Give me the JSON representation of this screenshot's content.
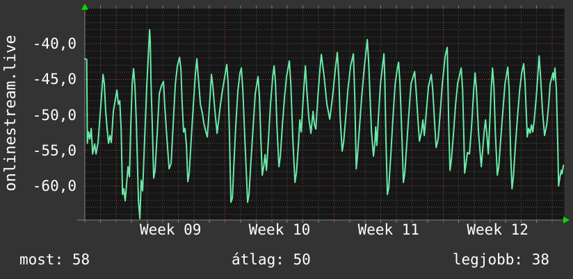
{
  "title": "onlinestream.live",
  "legend": {
    "items": [
      {
        "name": "now",
        "label": "most:",
        "value": "58"
      },
      {
        "name": "average",
        "label": "átlag:",
        "value": "50"
      },
      {
        "name": "best",
        "label": "legjobb:",
        "value": "38"
      }
    ]
  },
  "colors": {
    "background": "#333333",
    "plot_background": "#161616",
    "grid_minor": "#525252",
    "grid_major": "#a84747",
    "axis": "#848484",
    "arrow": "#00dd00",
    "line": "#6beaa8",
    "text": "#ffffff"
  },
  "chart_data": {
    "type": "line",
    "title": "onlinestream.live",
    "grid": "on",
    "stats": {
      "most": 58,
      "atlag": 50,
      "legjobb": 38
    },
    "y_axis": {
      "range": [
        -64.8,
        -35.0
      ],
      "minor_step": 1,
      "ticks": [
        {
          "value": -40,
          "label": "-40,0"
        },
        {
          "value": -45,
          "label": "-45,0"
        },
        {
          "value": -50,
          "label": "-50,0"
        },
        {
          "value": -55,
          "label": "-55,0"
        },
        {
          "value": -60,
          "label": "-60,0"
        }
      ]
    },
    "x_axis": {
      "unit": "days from start of Week 09",
      "range_days": [
        -2.0,
        28.8
      ],
      "minor_step_days": 1,
      "week_boundary_days": [
        0,
        7,
        14,
        21,
        28
      ],
      "labels": [
        {
          "day_center": 3.5,
          "label": "Week 09"
        },
        {
          "day_center": 10.5,
          "label": "Week 10"
        },
        {
          "day_center": 17.5,
          "label": "Week 11"
        },
        {
          "day_center": 24.5,
          "label": "Week 12"
        }
      ]
    },
    "series": [
      {
        "name": "signal",
        "color": "#6beaa8",
        "points": [
          [
            -2.0,
            -42.1
          ],
          [
            -1.88,
            -42.2
          ],
          [
            -1.84,
            -54.0
          ],
          [
            -1.77,
            -52.4
          ],
          [
            -1.68,
            -53.4
          ],
          [
            -1.59,
            -51.9
          ],
          [
            -1.5,
            -55.5
          ],
          [
            -1.37,
            -54.1
          ],
          [
            -1.28,
            -55.5
          ],
          [
            -1.15,
            -53.9
          ],
          [
            -0.97,
            -48.5
          ],
          [
            -0.83,
            -44.3
          ],
          [
            -0.75,
            -45.6
          ],
          [
            -0.66,
            -49.5
          ],
          [
            -0.57,
            -51.9
          ],
          [
            -0.48,
            -54.0
          ],
          [
            -0.39,
            -52.9
          ],
          [
            -0.3,
            -53.9
          ],
          [
            -0.17,
            -49.5
          ],
          [
            0.06,
            -46.5
          ],
          [
            0.15,
            -48.5
          ],
          [
            0.24,
            -48.0
          ],
          [
            0.33,
            -51.9
          ],
          [
            0.42,
            -61.2
          ],
          [
            0.5,
            -60.4
          ],
          [
            0.59,
            -62.1
          ],
          [
            0.77,
            -57.3
          ],
          [
            0.86,
            -58.7
          ],
          [
            0.95,
            -51.4
          ],
          [
            1.04,
            -45.6
          ],
          [
            1.13,
            -43.5
          ],
          [
            1.22,
            -46.0
          ],
          [
            1.31,
            -51.4
          ],
          [
            1.44,
            -62.1
          ],
          [
            1.53,
            -64.6
          ],
          [
            1.62,
            -59.2
          ],
          [
            1.71,
            -60.7
          ],
          [
            1.84,
            -53.4
          ],
          [
            1.98,
            -45.6
          ],
          [
            2.16,
            -38.0
          ],
          [
            2.2,
            -39.7
          ],
          [
            2.25,
            -45.6
          ],
          [
            2.33,
            -51.4
          ],
          [
            2.42,
            -58.9
          ],
          [
            2.51,
            -57.8
          ],
          [
            2.65,
            -52.4
          ],
          [
            2.78,
            -47.0
          ],
          [
            2.92,
            -45.9
          ],
          [
            3.05,
            -45.3
          ],
          [
            3.14,
            -49.0
          ],
          [
            3.27,
            -53.4
          ],
          [
            3.41,
            -57.6
          ],
          [
            3.54,
            -56.8
          ],
          [
            3.67,
            -51.4
          ],
          [
            3.81,
            -45.6
          ],
          [
            3.94,
            -43.1
          ],
          [
            4.08,
            -41.9
          ],
          [
            4.17,
            -43.6
          ],
          [
            4.25,
            -48.5
          ],
          [
            4.34,
            -52.4
          ],
          [
            4.43,
            -51.9
          ],
          [
            4.52,
            -54.3
          ],
          [
            4.61,
            -59.4
          ],
          [
            4.7,
            -58.2
          ],
          [
            4.83,
            -53.4
          ],
          [
            4.97,
            -48.5
          ],
          [
            5.1,
            -44.1
          ],
          [
            5.19,
            -42.1
          ],
          [
            5.28,
            -44.6
          ],
          [
            5.42,
            -48.5
          ],
          [
            5.55,
            -49.8
          ],
          [
            5.64,
            -51.2
          ],
          [
            5.77,
            -52.4
          ],
          [
            5.86,
            -53.1
          ],
          [
            5.95,
            -50.4
          ],
          [
            6.13,
            -44.3
          ],
          [
            6.22,
            -46.0
          ],
          [
            6.35,
            -49.5
          ],
          [
            6.49,
            -52.6
          ],
          [
            6.58,
            -50.9
          ],
          [
            6.71,
            -48.5
          ],
          [
            6.84,
            -46.5
          ],
          [
            7.11,
            -42.9
          ],
          [
            7.2,
            -45.6
          ],
          [
            7.29,
            -53.4
          ],
          [
            7.38,
            -62.3
          ],
          [
            7.47,
            -61.7
          ],
          [
            7.56,
            -57.3
          ],
          [
            7.69,
            -51.4
          ],
          [
            7.83,
            -46.5
          ],
          [
            7.96,
            -44.1
          ],
          [
            8.05,
            -43.4
          ],
          [
            8.14,
            -46.5
          ],
          [
            8.27,
            -53.4
          ],
          [
            8.45,
            -62.3
          ],
          [
            8.54,
            -61.2
          ],
          [
            8.67,
            -56.3
          ],
          [
            8.81,
            -51.4
          ],
          [
            8.94,
            -47.0
          ],
          [
            9.12,
            -44.6
          ],
          [
            9.21,
            -47.5
          ],
          [
            9.3,
            -53.4
          ],
          [
            9.39,
            -58.5
          ],
          [
            9.48,
            -57.3
          ],
          [
            9.57,
            -55.6
          ],
          [
            9.66,
            -57.8
          ],
          [
            9.79,
            -53.4
          ],
          [
            9.92,
            -48.5
          ],
          [
            10.06,
            -44.6
          ],
          [
            10.15,
            -43.1
          ],
          [
            10.24,
            -45.6
          ],
          [
            10.33,
            -51.4
          ],
          [
            10.46,
            -57.3
          ],
          [
            10.55,
            -55.8
          ],
          [
            10.68,
            -51.4
          ],
          [
            10.82,
            -47.5
          ],
          [
            10.95,
            -44.6
          ],
          [
            11.13,
            -42.4
          ],
          [
            11.22,
            -45.6
          ],
          [
            11.35,
            -53.4
          ],
          [
            11.49,
            -59.5
          ],
          [
            11.58,
            -58.2
          ],
          [
            11.71,
            -54.3
          ],
          [
            11.8,
            -50.7
          ],
          [
            11.89,
            -52.4
          ],
          [
            12.02,
            -47.5
          ],
          [
            12.16,
            -43.1
          ],
          [
            12.25,
            -46.5
          ],
          [
            12.38,
            -50.4
          ],
          [
            12.51,
            -52.6
          ],
          [
            12.65,
            -49.5
          ],
          [
            12.74,
            -51.4
          ],
          [
            12.83,
            -52.0
          ],
          [
            12.96,
            -47.5
          ],
          [
            13.09,
            -43.6
          ],
          [
            13.18,
            -41.5
          ],
          [
            13.36,
            -44.6
          ],
          [
            13.54,
            -48.5
          ],
          [
            13.72,
            -50.6
          ],
          [
            13.9,
            -47.5
          ],
          [
            14.08,
            -43.6
          ],
          [
            14.21,
            -41.2
          ],
          [
            14.3,
            -44.6
          ],
          [
            14.39,
            -50.4
          ],
          [
            14.52,
            -55.1
          ],
          [
            14.61,
            -53.9
          ],
          [
            14.75,
            -50.4
          ],
          [
            14.88,
            -46.5
          ],
          [
            15.06,
            -43.1
          ],
          [
            15.24,
            -41.4
          ],
          [
            15.33,
            -47.5
          ],
          [
            15.42,
            -57.6
          ],
          [
            15.5,
            -55.8
          ],
          [
            15.64,
            -51.4
          ],
          [
            15.77,
            -47.5
          ],
          [
            15.95,
            -43.1
          ],
          [
            16.13,
            -39.4
          ],
          [
            16.22,
            -42.6
          ],
          [
            16.31,
            -47.5
          ],
          [
            16.4,
            -52.4
          ],
          [
            16.53,
            -55.8
          ],
          [
            16.62,
            -53.9
          ],
          [
            16.67,
            -51.7
          ],
          [
            16.75,
            -54.3
          ],
          [
            16.84,
            -50.4
          ],
          [
            16.98,
            -45.6
          ],
          [
            17.2,
            -41.4
          ],
          [
            17.25,
            -44.6
          ],
          [
            17.33,
            -53.4
          ],
          [
            17.42,
            -61.2
          ],
          [
            17.51,
            -60.2
          ],
          [
            17.65,
            -55.3
          ],
          [
            17.78,
            -50.4
          ],
          [
            17.92,
            -45.6
          ],
          [
            18.05,
            -43.6
          ],
          [
            18.14,
            -42.6
          ],
          [
            18.23,
            -45.6
          ],
          [
            18.36,
            -53.4
          ],
          [
            18.45,
            -59.5
          ],
          [
            18.54,
            -58.2
          ],
          [
            18.67,
            -53.9
          ],
          [
            18.81,
            -49.5
          ],
          [
            18.94,
            -45.6
          ],
          [
            19.17,
            -43.9
          ],
          [
            19.26,
            -46.5
          ],
          [
            19.39,
            -50.9
          ],
          [
            19.48,
            -53.7
          ],
          [
            19.61,
            -52.4
          ],
          [
            19.7,
            -50.7
          ],
          [
            19.79,
            -52.9
          ],
          [
            19.92,
            -49.5
          ],
          [
            20.06,
            -46.0
          ],
          [
            20.24,
            -44.3
          ],
          [
            20.33,
            -46.5
          ],
          [
            20.46,
            -51.4
          ],
          [
            20.55,
            -54.6
          ],
          [
            20.68,
            -53.4
          ],
          [
            20.82,
            -49.5
          ],
          [
            20.95,
            -45.6
          ],
          [
            21.13,
            -41.7
          ],
          [
            21.26,
            -40.5
          ],
          [
            21.31,
            -45.6
          ],
          [
            21.36,
            -51.4
          ],
          [
            21.44,
            -57.8
          ],
          [
            21.53,
            -56.3
          ],
          [
            21.67,
            -52.4
          ],
          [
            21.8,
            -48.5
          ],
          [
            21.93,
            -45.6
          ],
          [
            22.16,
            -43.4
          ],
          [
            22.25,
            -46.5
          ],
          [
            22.33,
            -53.4
          ],
          [
            22.38,
            -58.2
          ],
          [
            22.47,
            -56.8
          ],
          [
            22.56,
            -55.3
          ],
          [
            22.69,
            -55.5
          ],
          [
            22.83,
            -51.4
          ],
          [
            22.96,
            -46.5
          ],
          [
            23.05,
            -44.1
          ],
          [
            23.14,
            -46.5
          ],
          [
            23.27,
            -52.4
          ],
          [
            23.45,
            -57.3
          ],
          [
            23.54,
            -54.8
          ],
          [
            23.63,
            -52.4
          ],
          [
            23.72,
            -50.7
          ],
          [
            23.81,
            -52.9
          ],
          [
            23.9,
            -55.5
          ],
          [
            23.99,
            -51.4
          ],
          [
            24.08,
            -46.5
          ],
          [
            24.17,
            -43.4
          ],
          [
            24.26,
            -46.0
          ],
          [
            24.35,
            -52.4
          ],
          [
            24.48,
            -58.5
          ],
          [
            24.57,
            -57.3
          ],
          [
            24.7,
            -53.4
          ],
          [
            24.83,
            -49.5
          ],
          [
            24.97,
            -45.6
          ],
          [
            25.15,
            -43.3
          ],
          [
            25.24,
            -46.5
          ],
          [
            25.33,
            -55.3
          ],
          [
            25.42,
            -60.4
          ],
          [
            25.51,
            -58.7
          ],
          [
            25.64,
            -54.3
          ],
          [
            25.77,
            -50.4
          ],
          [
            25.91,
            -46.5
          ],
          [
            26.04,
            -44.1
          ],
          [
            26.17,
            -42.8
          ],
          [
            26.26,
            -45.6
          ],
          [
            26.35,
            -50.4
          ],
          [
            26.4,
            -53.1
          ],
          [
            26.49,
            -51.9
          ],
          [
            26.58,
            -52.6
          ],
          [
            26.67,
            -51.4
          ],
          [
            26.75,
            -52.4
          ],
          [
            26.84,
            -50.9
          ],
          [
            26.98,
            -47.5
          ],
          [
            27.16,
            -41.7
          ],
          [
            27.25,
            -44.6
          ],
          [
            27.38,
            -49.5
          ],
          [
            27.51,
            -52.9
          ],
          [
            27.65,
            -51.4
          ],
          [
            27.78,
            -48.5
          ],
          [
            27.87,
            -45.6
          ],
          [
            28.05,
            -44.1
          ],
          [
            28.09,
            -45.1
          ],
          [
            28.18,
            -43.4
          ],
          [
            28.27,
            -46.5
          ],
          [
            28.36,
            -54.3
          ],
          [
            28.41,
            -60.0
          ],
          [
            28.5,
            -58.7
          ],
          [
            28.58,
            -57.8
          ],
          [
            28.63,
            -58.3
          ],
          [
            28.72,
            -57.1
          ]
        ]
      }
    ]
  }
}
